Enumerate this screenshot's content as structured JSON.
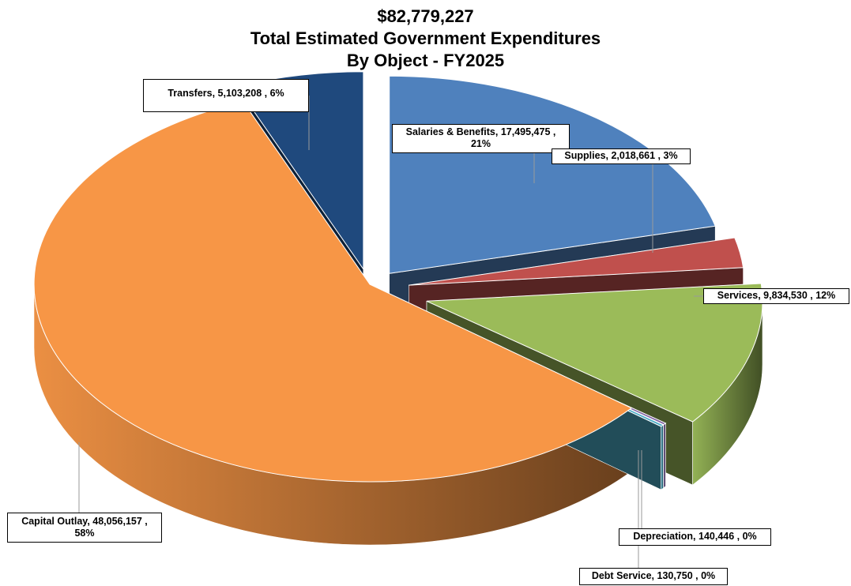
{
  "chart_data": {
    "type": "pie",
    "title_lines": [
      "$82,779,227",
      "Total Estimated Government Expenditures",
      "By Object - FY2025"
    ],
    "total": 82779227,
    "slices": [
      {
        "name": "Salaries & Benefits",
        "value": 17495475,
        "percent": "21%",
        "color": "#4F81BD",
        "label": "Salaries & Benefits,  17,495,475 , 21%"
      },
      {
        "name": "Supplies",
        "value": 2018661,
        "percent": "3%",
        "color": "#C0504D",
        "label": "Supplies,  2,018,661 , 3%"
      },
      {
        "name": "Services",
        "value": 9834530,
        "percent": "12%",
        "color": "#9BBB59",
        "label": "Services,  9,834,530 , 12%"
      },
      {
        "name": "Debt Service",
        "value": 130750,
        "percent": "0%",
        "color": "#8064A2",
        "label": "Debt Service,  130,750 , 0%"
      },
      {
        "name": "Depreciation",
        "value": 140446,
        "percent": "0%",
        "color": "#4BACC6",
        "label": "Depreciation,  140,446 , 0%"
      },
      {
        "name": "Capital Outlay",
        "value": 48056157,
        "percent": "58%",
        "color": "#F79646",
        "label": "Capital Outlay,  48,056,157 , 58%"
      },
      {
        "name": "Transfers",
        "value": 5103208,
        "percent": "6%",
        "color": "#1F497D",
        "label": "Transfers,  5,103,208 , 6%"
      }
    ],
    "legend": "none",
    "style": "3D exploded pie"
  }
}
